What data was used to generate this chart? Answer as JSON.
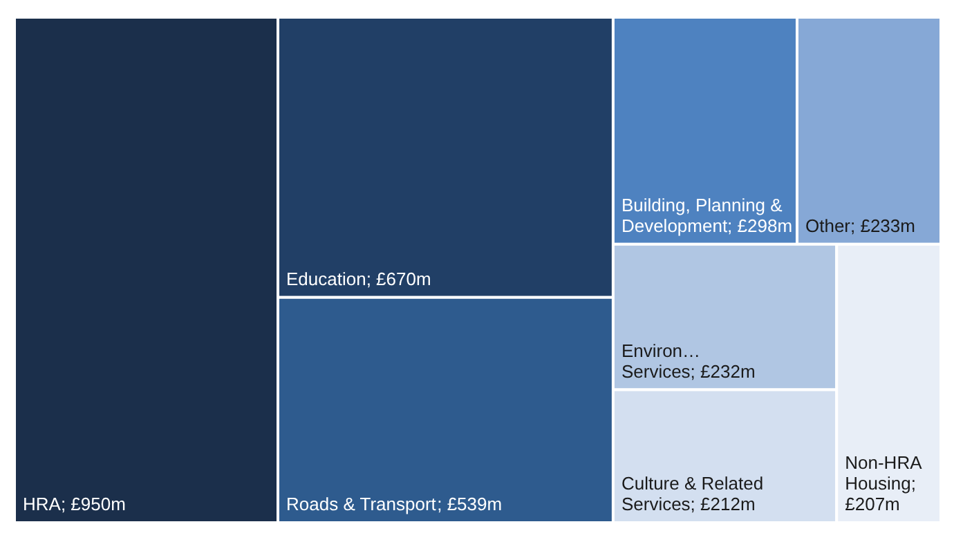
{
  "chart_data": {
    "type": "other",
    "categories": [
      "HRA",
      "Education",
      "Roads & Transport",
      "Building, Planning & Development",
      "Other",
      "Environ… Services",
      "Culture & Related Services",
      "Non-HRA Housing"
    ],
    "values": [
      950,
      670,
      539,
      298,
      233,
      232,
      212,
      207
    ],
    "value_labels": [
      "; £950m",
      "; £670m",
      "; £539m",
      "; £298m",
      "; £233m",
      "; £232m",
      "; £212m",
      "; £207m"
    ],
    "colors": [
      "#1b2f4b",
      "#213f66",
      "#2e5b8e",
      "#4e82c0",
      "#86a8d6",
      "#b0c6e3",
      "#d3dff0",
      "#e8eef7"
    ]
  }
}
